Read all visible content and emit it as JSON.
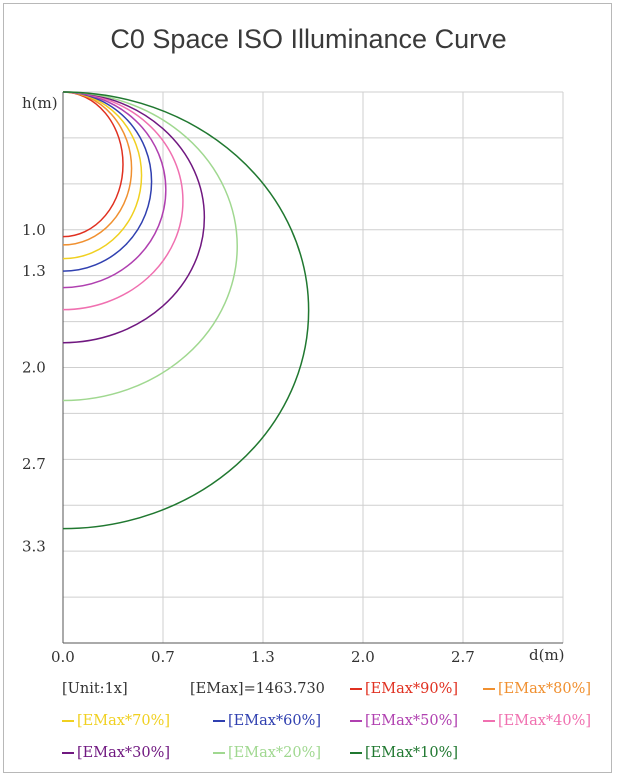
{
  "chart_data": {
    "type": "line",
    "title": "C0 Space ISO Illuminance Curve",
    "xlabel": "d(m)",
    "ylabel": "h(m)",
    "x_ticks": [
      "0.0",
      "0.7",
      "1.3",
      "2.0",
      "2.7"
    ],
    "y_ticks": [
      "1.0",
      "1.3",
      "2.0",
      "2.7",
      "3.3"
    ],
    "xlim": [
      0,
      3.5
    ],
    "ylim": [
      0,
      4.0
    ],
    "grid": true,
    "legend_info": {
      "unit": "[Unit:1x]",
      "emax": "[EMax]=1463.730"
    },
    "series": [
      {
        "name": "[EMax*90%]",
        "color": "#e03020",
        "depth": 1.05,
        "width": 0.42
      },
      {
        "name": "[EMax*80%]",
        "color": "#f09030",
        "depth": 1.11,
        "width": 0.48
      },
      {
        "name": "[EMax*70%]",
        "color": "#f0d020",
        "depth": 1.21,
        "width": 0.55
      },
      {
        "name": "[EMax*60%]",
        "color": "#3040b0",
        "depth": 1.3,
        "width": 0.62
      },
      {
        "name": "[EMax*50%]",
        "color": "#b040b0",
        "depth": 1.42,
        "width": 0.72
      },
      {
        "name": "[EMax*40%]",
        "color": "#f070b0",
        "depth": 1.58,
        "width": 0.84
      },
      {
        "name": "[EMax*30%]",
        "color": "#701880",
        "depth": 1.82,
        "width": 0.99
      },
      {
        "name": "[EMax*20%]",
        "color": "#a0d890",
        "depth": 2.24,
        "width": 1.22
      },
      {
        "name": "[EMax*10%]",
        "color": "#207830",
        "depth": 3.17,
        "width": 1.72
      }
    ]
  }
}
